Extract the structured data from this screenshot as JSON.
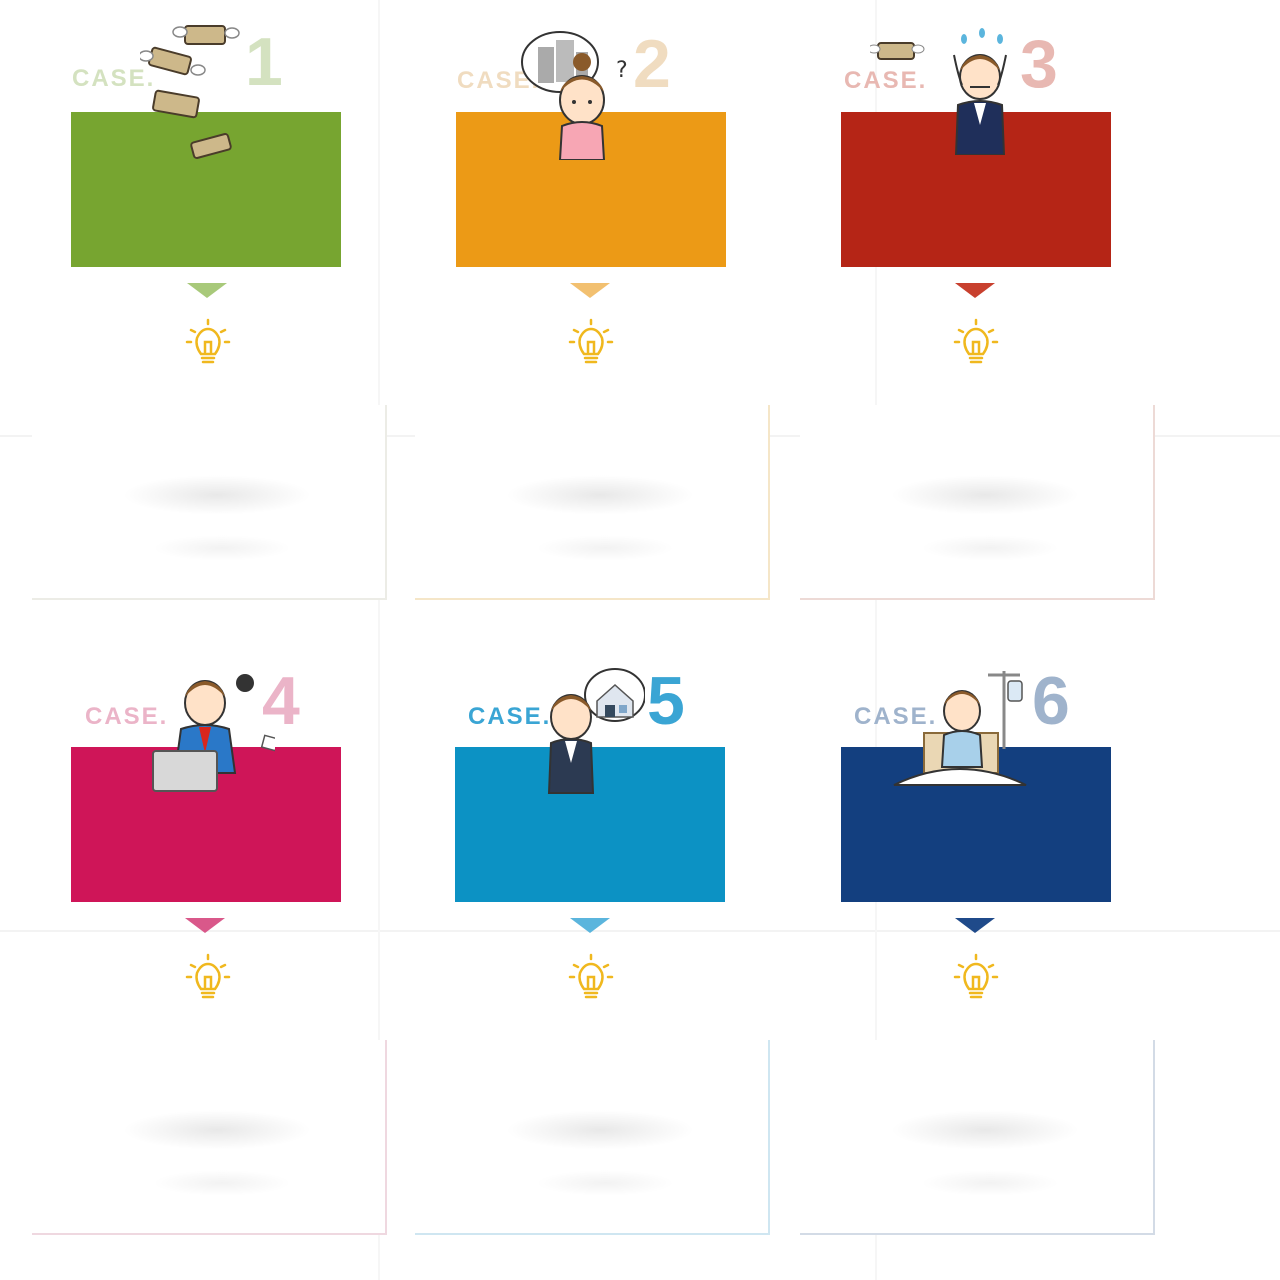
{
  "cases": [
    {
      "label": "CASE.",
      "number": "1",
      "color": "#77a530",
      "label_color": "#d4e2c0",
      "number_color": "#d4e2c0",
      "arrow_color": "#a8c97a",
      "card_border": "#ecece6",
      "illustration": "flying-money-icon"
    },
    {
      "label": "CASE.",
      "number": "2",
      "color": "#ec9a16",
      "label_color": "#f0dcc0",
      "number_color": "#f0dcc0",
      "arrow_color": "#f2c070",
      "card_border": "#f5e6c8",
      "illustration": "worried-woman-thinking-icon"
    },
    {
      "label": "CASE.",
      "number": "3",
      "color": "#b52516",
      "label_color": "#e8b8b2",
      "number_color": "#e8b8b2",
      "arrow_color": "#c8402e",
      "card_border": "#eddad6",
      "illustration": "stressed-businessman-icon"
    },
    {
      "label": "CASE.",
      "number": "4",
      "color": "#cf1558",
      "label_color": "#ebb4c8",
      "number_color": "#ebb4c8",
      "arrow_color": "#d9588a",
      "card_border": "#efd8e0",
      "illustration": "busy-office-worker-icon"
    },
    {
      "label": "CASE.",
      "number": "5",
      "color": "#0c92c4",
      "label_color": "#3aa5d4",
      "number_color": "#3aa5d4",
      "arrow_color": "#5bb5dd",
      "card_border": "#cfe6f1",
      "illustration": "man-thinking-house-icon"
    },
    {
      "label": "CASE.",
      "number": "6",
      "color": "#133f7f",
      "label_color": "#9fb3cc",
      "number_color": "#9fb3cc",
      "arrow_color": "#1f4a8a",
      "card_border": "#d3dbe6",
      "illustration": "hospital-patient-icon"
    }
  ]
}
